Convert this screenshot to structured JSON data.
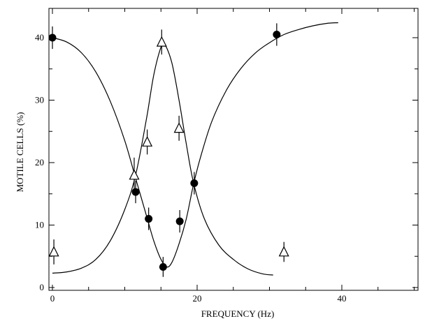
{
  "chart_data": {
    "type": "scatter",
    "title": "",
    "xlabel": "FREQUENCY (Hz)",
    "ylabel": "MOTILE CELLS (%)",
    "xlim": [
      0,
      50
    ],
    "ylim": [
      0,
      45
    ],
    "xticks": [
      0,
      20,
      40
    ],
    "yticks": [
      0,
      10,
      20,
      30,
      40
    ],
    "grid": false,
    "legend": "none",
    "series": [
      {
        "marker": "filled-circle",
        "points": [
          {
            "x": 0,
            "y": 40,
            "err": 1.8
          },
          {
            "x": 11.5,
            "y": 15.3,
            "err": 1.8
          },
          {
            "x": 13.3,
            "y": 11.0,
            "err": 1.8
          },
          {
            "x": 15.3,
            "y": 3.3,
            "err": 1.6
          },
          {
            "x": 17.6,
            "y": 10.6,
            "err": 1.8
          },
          {
            "x": 19.6,
            "y": 16.7,
            "err": 1.8
          },
          {
            "x": 31.0,
            "y": 40.5,
            "err": 1.8
          }
        ],
        "fit_curve": [
          [
            0,
            40
          ],
          [
            2,
            39.3
          ],
          [
            4,
            37.6
          ],
          [
            6,
            34.5
          ],
          [
            8,
            29.8
          ],
          [
            10,
            23.5
          ],
          [
            11.5,
            17.5
          ],
          [
            13,
            11.5
          ],
          [
            14,
            7.5
          ],
          [
            15,
            4.5
          ],
          [
            15.8,
            3.3
          ],
          [
            16.5,
            4.0
          ],
          [
            17.5,
            7.0
          ],
          [
            18.5,
            11.0
          ],
          [
            19.5,
            16.5
          ],
          [
            20.5,
            21.0
          ],
          [
            22,
            26.5
          ],
          [
            24,
            31.5
          ],
          [
            26,
            35.0
          ],
          [
            28,
            37.5
          ],
          [
            30,
            39.2
          ],
          [
            32,
            40.5
          ],
          [
            34,
            41.3
          ],
          [
            36,
            41.9
          ],
          [
            38,
            42.3
          ],
          [
            39.5,
            42.4
          ]
        ]
      },
      {
        "marker": "open-triangle",
        "points": [
          {
            "x": 0.2,
            "y": 5.7,
            "err": 2.0
          },
          {
            "x": 11.3,
            "y": 18.0,
            "err": 2.8
          },
          {
            "x": 13.1,
            "y": 23.3,
            "err": 2.0
          },
          {
            "x": 15.1,
            "y": 39.3,
            "err": 2.0
          },
          {
            "x": 17.5,
            "y": 25.5,
            "err": 2.0
          },
          {
            "x": 32.0,
            "y": 5.7,
            "err": 1.6
          }
        ],
        "fit_curve": [
          [
            0,
            2.3
          ],
          [
            2,
            2.5
          ],
          [
            4,
            3.1
          ],
          [
            6,
            4.5
          ],
          [
            8,
            7.5
          ],
          [
            10,
            12.5
          ],
          [
            11.5,
            18.0
          ],
          [
            13,
            27.0
          ],
          [
            14,
            34.0
          ],
          [
            15,
            38.5
          ],
          [
            15.5,
            39.0
          ],
          [
            16.5,
            36.0
          ],
          [
            17.5,
            30.0
          ],
          [
            18.5,
            23.0
          ],
          [
            19.5,
            16.8
          ],
          [
            21,
            11.0
          ],
          [
            23,
            6.8
          ],
          [
            25,
            4.5
          ],
          [
            27,
            3.0
          ],
          [
            29,
            2.2
          ],
          [
            30.5,
            2.0
          ]
        ]
      }
    ]
  }
}
